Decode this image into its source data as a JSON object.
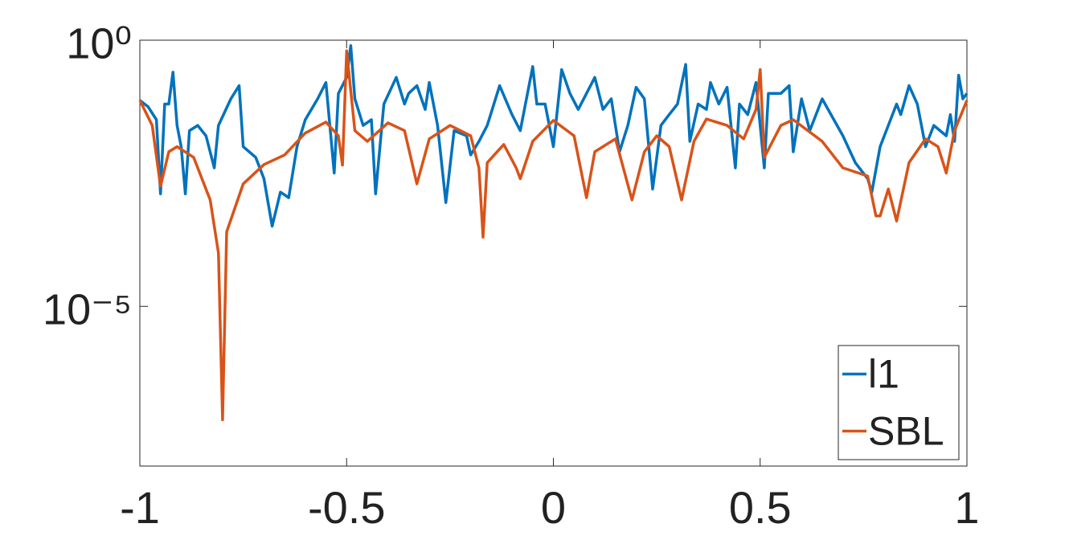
{
  "chart_data": {
    "type": "line",
    "xlim": [
      -1,
      1
    ],
    "xticks": [
      -1,
      -0.5,
      0,
      0.5,
      1
    ],
    "ylim": [
      1e-08,
      1
    ],
    "ylog": true,
    "yticks": [
      {
        "value": 1,
        "label": "10⁰"
      },
      {
        "value": 1e-05,
        "label": "10⁻⁵"
      }
    ],
    "legend": "lower right",
    "series": [
      {
        "name": "l1",
        "color": "#0072bd",
        "x": [
          -1,
          -0.98,
          -0.96,
          -0.95,
          -0.94,
          -0.93,
          -0.92,
          -0.91,
          -0.9,
          -0.89,
          -0.88,
          -0.86,
          -0.84,
          -0.82,
          -0.81,
          -0.78,
          -0.76,
          -0.75,
          -0.72,
          -0.7,
          -0.68,
          -0.66,
          -0.64,
          -0.62,
          -0.6,
          -0.57,
          -0.55,
          -0.53,
          -0.52,
          -0.5,
          -0.49,
          -0.48,
          -0.46,
          -0.44,
          -0.43,
          -0.41,
          -0.38,
          -0.36,
          -0.35,
          -0.33,
          -0.31,
          -0.3,
          -0.28,
          -0.26,
          -0.24,
          -0.21,
          -0.2,
          -0.18,
          -0.16,
          -0.13,
          -0.1,
          -0.08,
          -0.05,
          -0.04,
          -0.02,
          0,
          0.02,
          0.04,
          0.06,
          0.08,
          0.1,
          0.12,
          0.14,
          0.16,
          0.18,
          0.2,
          0.22,
          0.24,
          0.26,
          0.28,
          0.3,
          0.32,
          0.33,
          0.35,
          0.37,
          0.38,
          0.4,
          0.42,
          0.44,
          0.45,
          0.47,
          0.49,
          0.51,
          0.52,
          0.55,
          0.57,
          0.58,
          0.6,
          0.62,
          0.65,
          0.7,
          0.73,
          0.76,
          0.77,
          0.79,
          0.81,
          0.83,
          0.84,
          0.86,
          0.88,
          0.9,
          0.92,
          0.95,
          0.96,
          0.97,
          0.98,
          0.99,
          1
        ],
        "values": [
          0.074,
          0.056,
          0.032,
          0.0013,
          0.063,
          0.063,
          0.25,
          0.025,
          0.01,
          0.0013,
          0.02,
          0.025,
          0.016,
          0.004,
          0.025,
          0.079,
          0.14,
          0.01,
          0.0063,
          0.0025,
          0.00032,
          0.0014,
          0.0011,
          0.01,
          0.032,
          0.079,
          0.16,
          0.0032,
          0.1,
          0.2,
          0.79,
          0.079,
          0.025,
          0.032,
          0.0013,
          0.063,
          0.2,
          0.063,
          0.1,
          0.14,
          0.05,
          0.16,
          0.025,
          0.00089,
          0.02,
          0.016,
          0.007,
          0.0126,
          0.025,
          0.14,
          0.04,
          0.02,
          0.32,
          0.063,
          0.063,
          0.01,
          0.28,
          0.1,
          0.05,
          0.1,
          0.2,
          0.05,
          0.079,
          0.008,
          0.025,
          0.13,
          0.079,
          0.0016,
          0.025,
          0.04,
          0.063,
          0.35,
          0.0126,
          0.063,
          0.05,
          0.16,
          0.063,
          0.13,
          0.004,
          0.063,
          0.04,
          0.16,
          0.004,
          0.1,
          0.1,
          0.14,
          0.008,
          0.079,
          0.02,
          0.079,
          0.016,
          0.005,
          0.0025,
          0.0014,
          0.01,
          0.025,
          0.063,
          0.04,
          0.14,
          0.063,
          0.01,
          0.025,
          0.016,
          0.04,
          0.0126,
          0.22,
          0.079,
          0.1
        ]
      },
      {
        "name": "SBL",
        "color": "#d95319",
        "x": [
          -1,
          -0.97,
          -0.95,
          -0.93,
          -0.91,
          -0.87,
          -0.83,
          -0.81,
          -0.8,
          -0.79,
          -0.75,
          -0.7,
          -0.65,
          -0.6,
          -0.55,
          -0.52,
          -0.51,
          -0.5,
          -0.48,
          -0.45,
          -0.4,
          -0.36,
          -0.33,
          -0.3,
          -0.25,
          -0.2,
          -0.18,
          -0.17,
          -0.16,
          -0.12,
          -0.09,
          -0.08,
          -0.05,
          0,
          0.05,
          0.08,
          0.1,
          0.15,
          0.19,
          0.22,
          0.25,
          0.28,
          0.31,
          0.34,
          0.37,
          0.42,
          0.46,
          0.49,
          0.5,
          0.51,
          0.55,
          0.58,
          0.65,
          0.7,
          0.76,
          0.78,
          0.79,
          0.81,
          0.83,
          0.86,
          0.9,
          0.93,
          0.95,
          0.97,
          1
        ],
        "values": [
          0.074,
          0.025,
          0.0018,
          0.008,
          0.01,
          0.0063,
          0.001,
          0.0001,
          7.4e-08,
          0.00025,
          0.002,
          0.0046,
          0.007,
          0.018,
          0.029,
          0.016,
          0.0045,
          0.63,
          0.02,
          0.0126,
          0.028,
          0.02,
          0.002,
          0.014,
          0.025,
          0.016,
          0.004,
          0.0002,
          0.005,
          0.011,
          0.004,
          0.0025,
          0.0126,
          0.031,
          0.016,
          0.0011,
          0.008,
          0.014,
          0.001,
          0.008,
          0.016,
          0.01,
          0.001,
          0.0126,
          0.033,
          0.025,
          0.014,
          0.05,
          0.28,
          0.0063,
          0.025,
          0.032,
          0.0126,
          0.004,
          0.0028,
          0.0005,
          0.0005,
          0.0016,
          0.0004,
          0.005,
          0.014,
          0.01,
          0.0032,
          0.02,
          0.074
        ]
      }
    ]
  }
}
